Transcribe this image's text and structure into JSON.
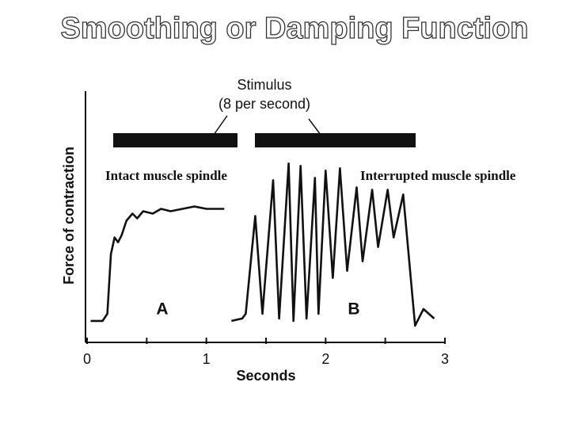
{
  "chart_data": {
    "type": "line",
    "title": "Smoothing or Damping Function",
    "xlabel": "Seconds",
    "ylabel": "Force of contraction",
    "annotations": [
      "Stimulus",
      "(8 per second)",
      "A",
      "B"
    ],
    "xlim": [
      0,
      3
    ],
    "xticks": [
      0,
      1,
      2,
      3
    ],
    "xminor": [
      0.5,
      1.5,
      2.5
    ],
    "ylim": [
      -0.07,
      1.0
    ],
    "series": [
      {
        "name": "Intact muscle spindle",
        "color": "#111111",
        "x": [
          0.03,
          0.13,
          0.17,
          0.2,
          0.23,
          0.26,
          0.29,
          0.33,
          0.38,
          0.42,
          0.47,
          0.55,
          0.62,
          0.7,
          0.8,
          0.9,
          1.0,
          1.1,
          1.15
        ],
        "values": [
          0.02,
          0.02,
          0.05,
          0.3,
          0.37,
          0.35,
          0.38,
          0.44,
          0.47,
          0.45,
          0.48,
          0.47,
          0.49,
          0.48,
          0.49,
          0.5,
          0.49,
          0.49,
          0.49
        ]
      },
      {
        "name": "Interrupted muscle spindle",
        "color": "#111111",
        "x": [
          1.21,
          1.3,
          1.33,
          1.41,
          1.47,
          1.56,
          1.61,
          1.69,
          1.73,
          1.79,
          1.84,
          1.91,
          1.94,
          2.0,
          2.06,
          2.12,
          2.18,
          2.26,
          2.31,
          2.39,
          2.44,
          2.52,
          2.57,
          2.65,
          2.75,
          2.82,
          2.91
        ],
        "values": [
          0.02,
          0.03,
          0.05,
          0.46,
          0.05,
          0.61,
          0.03,
          0.68,
          0.02,
          0.67,
          0.03,
          0.62,
          0.05,
          0.65,
          0.2,
          0.66,
          0.23,
          0.58,
          0.27,
          0.57,
          0.33,
          0.57,
          0.37,
          0.55,
          0.0,
          0.07,
          0.03
        ]
      }
    ]
  }
}
